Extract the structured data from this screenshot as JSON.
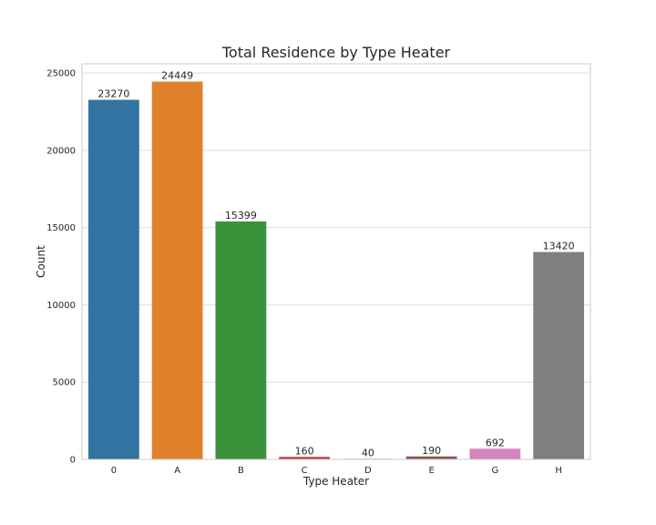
{
  "chart_data": {
    "type": "bar",
    "title": "Total Residence by Type Heater",
    "xlabel": "Type Heater",
    "ylabel": "Count",
    "categories": [
      "0",
      "A",
      "B",
      "C",
      "D",
      "E",
      "G",
      "H"
    ],
    "values": [
      23270,
      24449,
      15399,
      160,
      40,
      190,
      692,
      13420
    ],
    "data_labels": [
      "23270",
      "24449",
      "15399",
      "160",
      "40",
      "190",
      "692",
      "13420"
    ],
    "colors": [
      "#3274a1",
      "#e1812c",
      "#3a923a",
      "#c03d3e",
      "#9372b2",
      "#845b53",
      "#d684bd",
      "#7f7f7f"
    ],
    "ylim": [
      0,
      25600
    ],
    "yticks": [
      0,
      5000,
      10000,
      15000,
      20000,
      25000
    ],
    "ytick_labels": [
      "0",
      "5000",
      "10000",
      "15000",
      "20000",
      "25000"
    ],
    "grid": true,
    "legend": "none"
  }
}
